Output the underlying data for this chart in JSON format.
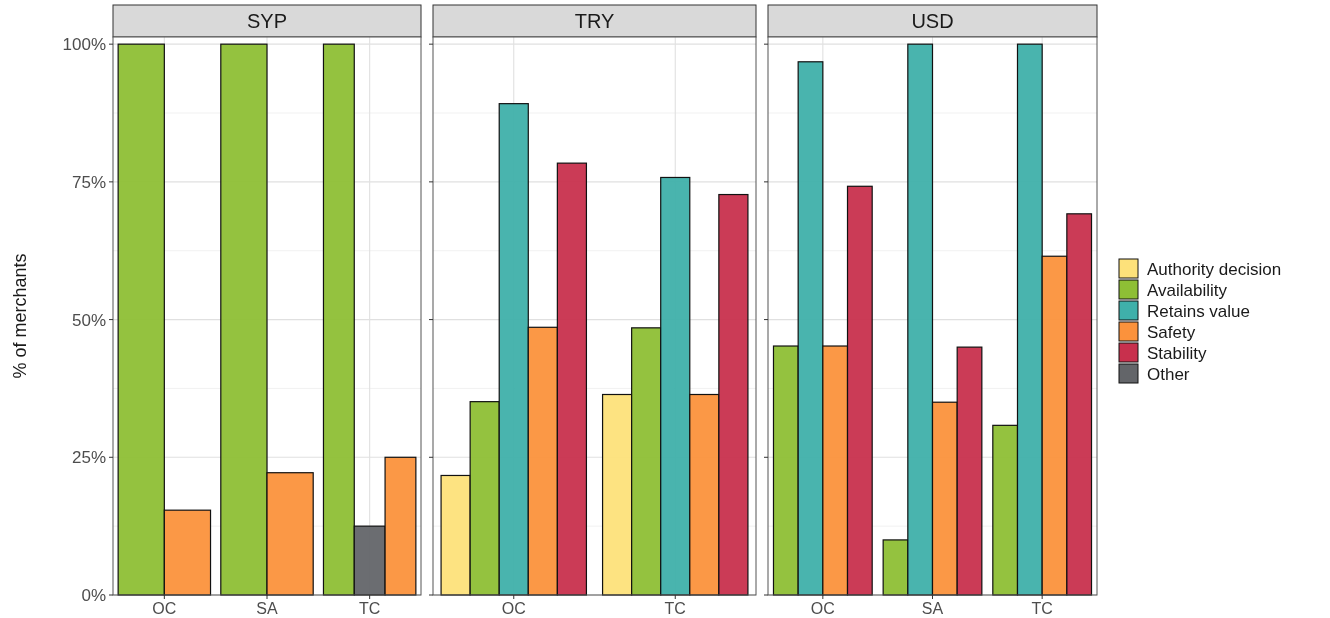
{
  "chart_data": [
    {
      "type": "bar",
      "title": "SYP",
      "ylabel": "% of merchants",
      "categories": [
        "OC",
        "SA",
        "TC"
      ],
      "ylim": [
        0,
        101.3
      ],
      "yticks": [
        {
          "value": 0,
          "label": "0%"
        },
        {
          "value": 25,
          "label": "25%"
        },
        {
          "value": 50,
          "label": "50%"
        },
        {
          "value": 75,
          "label": "75%"
        },
        {
          "value": 100,
          "label": "100%"
        }
      ],
      "grid": true,
      "series": [
        {
          "color": "#8ebf35",
          "values": [
            100,
            100,
            100
          ]
        },
        {
          "color": "#636569",
          "values": [
            null,
            null,
            12.5
          ]
        },
        {
          "color": "#fb923c",
          "values": [
            15.4,
            22.2,
            25
          ]
        }
      ]
    },
    {
      "type": "bar",
      "title": "TRY",
      "categories": [
        "OC",
        "TC"
      ],
      "ylim": [
        0,
        101.3
      ],
      "yticks": [
        0,
        25,
        50,
        75,
        100
      ],
      "grid": true,
      "tick_labels": "x",
      "series": [
        {
          "color": "#fde17a",
          "values": [
            21.7,
            36.4
          ]
        },
        {
          "color": "#8ebf35",
          "values": [
            35.1,
            48.5
          ]
        },
        {
          "color": "#3fb0aa",
          "values": [
            89.2,
            75.8
          ]
        },
        {
          "color": "#fb923c",
          "values": [
            48.6,
            36.4
          ]
        },
        {
          "color": "#c8304d",
          "values": [
            78.4,
            72.7
          ]
        }
      ]
    },
    {
      "type": "bar",
      "title": "USD",
      "categories": [
        "OC",
        "SA",
        "TC"
      ],
      "ylim": [
        0,
        101.3
      ],
      "yticks": [
        0,
        25,
        50,
        75,
        100
      ],
      "grid": true,
      "tick_labels": "x",
      "legend": "right",
      "series": [
        {
          "name": "Authority decision",
          "color": "#fde17a",
          "values": [
            null,
            null,
            null
          ]
        },
        {
          "name": "Availability",
          "color": "#8ebf35",
          "values": [
            45.2,
            10,
            30.8
          ]
        },
        {
          "name": "Retains value",
          "color": "#3fb0aa",
          "values": [
            96.8,
            100,
            100
          ]
        },
        {
          "name": "Safety",
          "color": "#fb923c",
          "values": [
            45.2,
            35,
            61.5
          ]
        },
        {
          "name": "Stability",
          "color": "#c8304d",
          "values": [
            74.2,
            45,
            69.2
          ]
        },
        {
          "name": "Other",
          "color": "#636569",
          "values": [
            null,
            null,
            null
          ]
        }
      ]
    }
  ]
}
